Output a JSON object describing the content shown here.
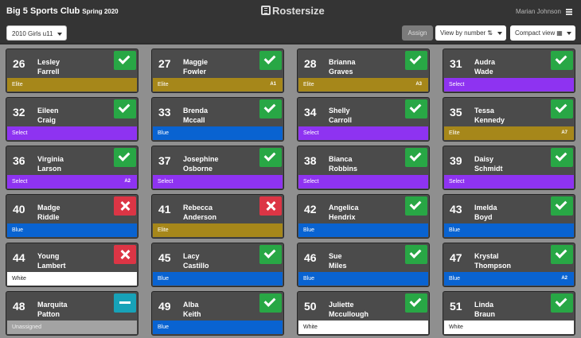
{
  "header": {
    "club_name": "Big 5 Sports Club",
    "season": "Spring 2020",
    "brand": "Rostersize",
    "user_name": "Marian Johnson"
  },
  "toolbar": {
    "team_select_value": "2010 Girls u11",
    "assign_label": "Assign",
    "view_by_label": "View by number",
    "view_by_glyph": "⇅",
    "compact_label": "Compact view",
    "compact_glyph": "▦"
  },
  "colors": {
    "Elite": {
      "bg": "#a6871a",
      "fg": "#ffffff"
    },
    "Select": {
      "bg": "#8e33f1",
      "fg": "#ffffff"
    },
    "Blue": {
      "bg": "#0963d1",
      "fg": "#ffffff"
    },
    "White": {
      "bg": "#ffffff",
      "fg": "#222222"
    },
    "Unassigned": {
      "bg": "#a3a3a3",
      "fg": "#f0f0f0"
    }
  },
  "players": [
    {
      "number": "26",
      "first": "Lesley",
      "last": "Farrell",
      "status": "ok",
      "team": "Elite",
      "tag": ""
    },
    {
      "number": "27",
      "first": "Maggie",
      "last": "Fowler",
      "status": "ok",
      "team": "Elite",
      "tag": "A1"
    },
    {
      "number": "28",
      "first": "Brianna",
      "last": "Graves",
      "status": "ok",
      "team": "Elite",
      "tag": "A3"
    },
    {
      "number": "31",
      "first": "Audra",
      "last": "Wade",
      "status": "ok",
      "team": "Select",
      "tag": ""
    },
    {
      "number": "32",
      "first": "Eileen",
      "last": "Craig",
      "status": "ok",
      "team": "Select",
      "tag": ""
    },
    {
      "number": "33",
      "first": "Brenda",
      "last": "Mccall",
      "status": "ok",
      "team": "Blue",
      "tag": ""
    },
    {
      "number": "34",
      "first": "Shelly",
      "last": "Carroll",
      "status": "ok",
      "team": "Select",
      "tag": ""
    },
    {
      "number": "35",
      "first": "Tessa",
      "last": "Kennedy",
      "status": "ok",
      "team": "Elite",
      "tag": "A7"
    },
    {
      "number": "36",
      "first": "Virginia",
      "last": "Larson",
      "status": "ok",
      "team": "Select",
      "tag": "A2"
    },
    {
      "number": "37",
      "first": "Josephine",
      "last": "Osborne",
      "status": "ok",
      "team": "Select",
      "tag": ""
    },
    {
      "number": "38",
      "first": "Bianca",
      "last": "Robbins",
      "status": "ok",
      "team": "Select",
      "tag": ""
    },
    {
      "number": "39",
      "first": "Daisy",
      "last": "Schmidt",
      "status": "ok",
      "team": "Select",
      "tag": ""
    },
    {
      "number": "40",
      "first": "Madge",
      "last": "Riddle",
      "status": "no",
      "team": "Blue",
      "tag": ""
    },
    {
      "number": "41",
      "first": "Rebecca",
      "last": "Anderson",
      "status": "no",
      "team": "Elite",
      "tag": ""
    },
    {
      "number": "42",
      "first": "Angelica",
      "last": "Hendrix",
      "status": "ok",
      "team": "Blue",
      "tag": ""
    },
    {
      "number": "43",
      "first": "Imelda",
      "last": "Boyd",
      "status": "ok",
      "team": "Blue",
      "tag": ""
    },
    {
      "number": "44",
      "first": "Young",
      "last": "Lambert",
      "status": "no",
      "team": "White",
      "tag": ""
    },
    {
      "number": "45",
      "first": "Lacy",
      "last": "Castillo",
      "status": "ok",
      "team": "Blue",
      "tag": ""
    },
    {
      "number": "46",
      "first": "Sue",
      "last": "Miles",
      "status": "ok",
      "team": "Blue",
      "tag": ""
    },
    {
      "number": "47",
      "first": "Krystal",
      "last": "Thompson",
      "status": "ok",
      "team": "Blue",
      "tag": "A2"
    },
    {
      "number": "48",
      "first": "Marquita",
      "last": "Patton",
      "status": "pending",
      "team": "Unassigned",
      "tag": ""
    },
    {
      "number": "49",
      "first": "Alba",
      "last": "Keith",
      "status": "ok",
      "team": "Blue",
      "tag": ""
    },
    {
      "number": "50",
      "first": "Juliette",
      "last": "Mccullough",
      "status": "ok",
      "team": "White",
      "tag": ""
    },
    {
      "number": "51",
      "first": "Linda",
      "last": "Braun",
      "status": "ok",
      "team": "White",
      "tag": ""
    }
  ]
}
